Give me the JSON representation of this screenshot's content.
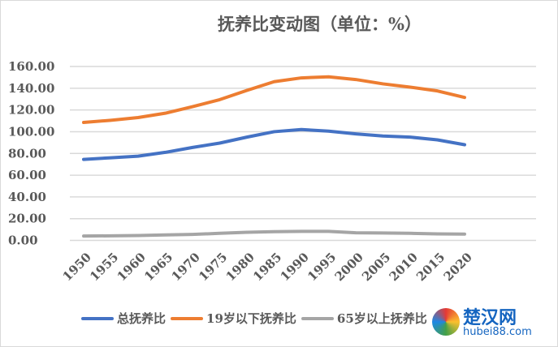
{
  "chart_data": {
    "type": "line",
    "title": "抚养比变动图（单位：%）",
    "x": [
      1950,
      1955,
      1960,
      1965,
      1970,
      1975,
      1980,
      1985,
      1990,
      1995,
      2000,
      2005,
      2010,
      2015,
      2020
    ],
    "ylim": [
      0,
      160
    ],
    "yticks": [
      "0.00",
      "20.00",
      "40.00",
      "60.00",
      "80.00",
      "100.00",
      "120.00",
      "140.00",
      "160.00"
    ],
    "grid": true,
    "legend": "bottom",
    "series": [
      {
        "name": "总抚养比",
        "color": "#4472c4",
        "values": [
          74.5,
          76,
          77.5,
          81,
          85.5,
          89.5,
          95,
          100,
          102,
          100.5,
          98,
          96,
          95,
          92.5,
          88
        ]
      },
      {
        "name": "19岁以下抚养比",
        "color": "#ed7d31",
        "values": [
          108.5,
          110.5,
          113,
          117,
          123,
          129.5,
          138,
          146,
          149.5,
          150.5,
          148,
          144,
          141,
          137.5,
          131.5
        ]
      },
      {
        "name": "65岁以上抚养比",
        "color": "#a5a5a5",
        "values": [
          4,
          4.2,
          4.5,
          5,
          5.5,
          6.5,
          7.5,
          8,
          8.3,
          8.3,
          7,
          6.8,
          6.5,
          6,
          5.8
        ]
      }
    ]
  },
  "watermark": {
    "name": "楚汉网",
    "url": "hubei88.com"
  }
}
